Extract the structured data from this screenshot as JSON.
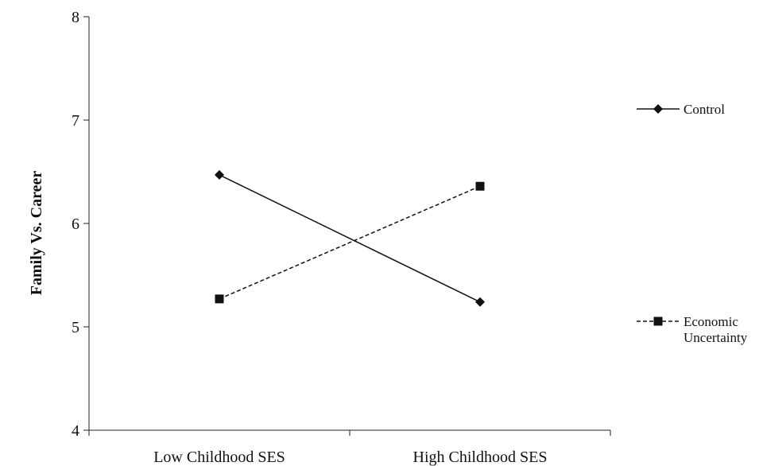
{
  "chart_data": {
    "type": "line",
    "title": "",
    "xlabel": "",
    "ylabel": "Family Vs. Career",
    "categories": [
      "Low Childhood SES",
      "High Childhood SES"
    ],
    "ylim": [
      4,
      8
    ],
    "yticks": [
      "4",
      "5",
      "6",
      "7",
      "8"
    ],
    "grid": false,
    "legend_position": "right",
    "series": [
      {
        "name": "Control",
        "values": [
          6.47,
          5.24
        ],
        "line_style": "solid",
        "marker": "diamond",
        "color": "#111111"
      },
      {
        "name": "Economic Uncertainty",
        "name_lines": [
          "Economic",
          "Uncertainty"
        ],
        "values": [
          5.27,
          6.36
        ],
        "line_style": "dashed",
        "marker": "square",
        "color": "#111111"
      }
    ]
  }
}
